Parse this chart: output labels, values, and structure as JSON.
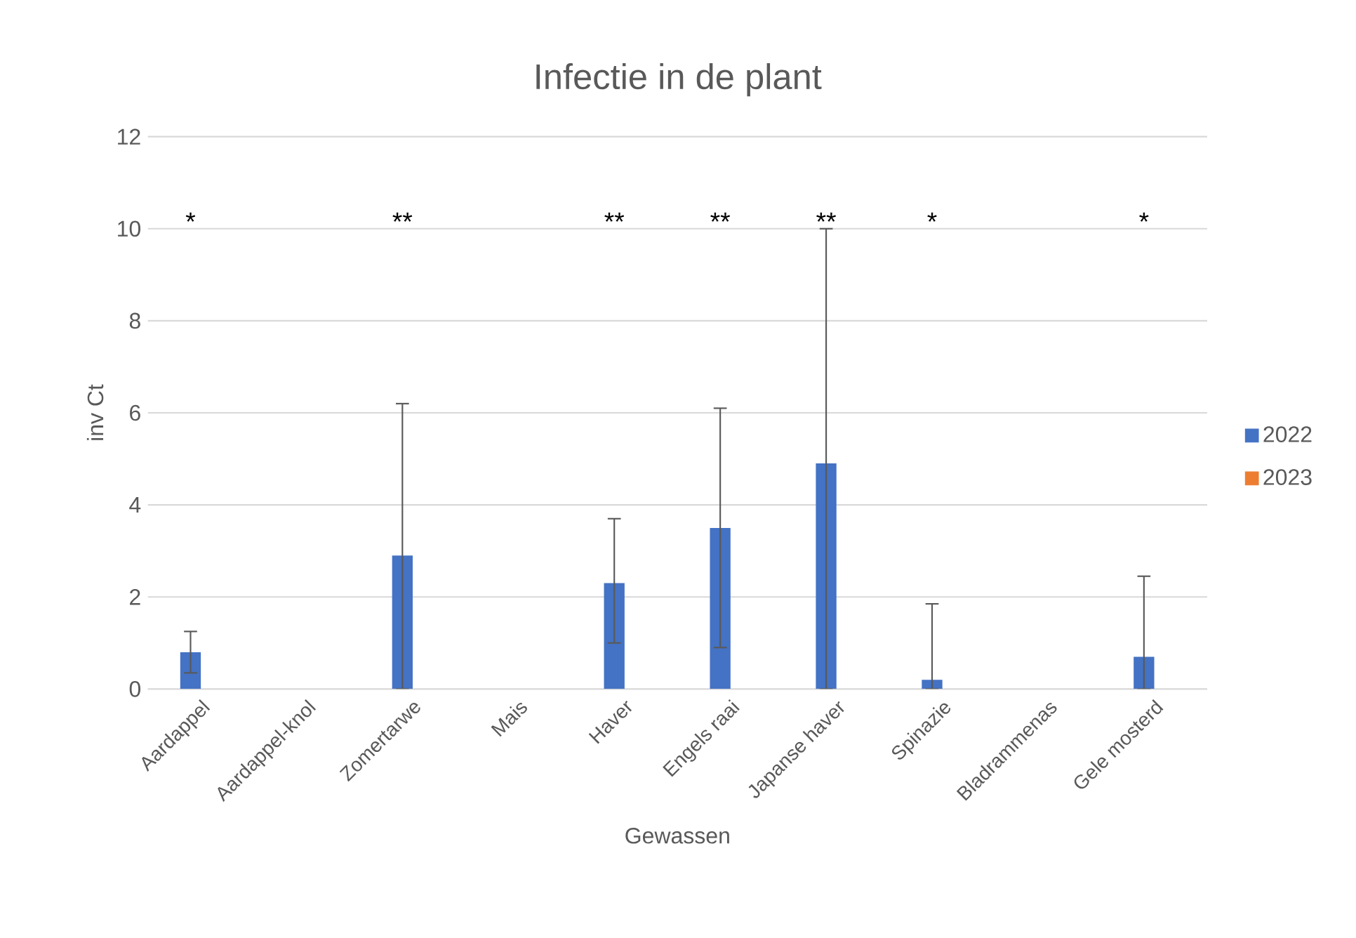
{
  "chart_data": {
    "type": "bar",
    "title": "Infectie in de plant",
    "xlabel": "Gewassen",
    "ylabel": "inv Ct",
    "categories": [
      "Aardappel",
      "Aardappel-knol",
      "Zomertarwe",
      "Mais",
      "Haver",
      "Engels  raai",
      "Japanse haver",
      "Spinazie",
      "Bladrammenas",
      "Gele mosterd"
    ],
    "series": [
      {
        "name": "2022",
        "color": "#4472c4",
        "values": [
          0.8,
          null,
          2.9,
          null,
          2.3,
          3.5,
          4.9,
          0.2,
          null,
          0.7
        ],
        "errors": [
          [
            0.35,
            1.25
          ],
          null,
          [
            0,
            6.2
          ],
          null,
          [
            1.0,
            3.7
          ],
          [
            0.9,
            6.1
          ],
          [
            0,
            10
          ],
          [
            0,
            1.85
          ],
          null,
          [
            0,
            2.45
          ]
        ]
      },
      {
        "name": "2023",
        "color": "#ed7d31",
        "values": [
          null,
          null,
          null,
          null,
          null,
          null,
          null,
          null,
          null,
          null
        ]
      }
    ],
    "ylim": [
      0,
      12
    ],
    "yticks": [
      0,
      2,
      4,
      6,
      8,
      10,
      12
    ],
    "grid": "y",
    "legend": "right",
    "annotations": [
      "*",
      "**",
      "**",
      "**",
      "**",
      "*",
      "*"
    ]
  }
}
